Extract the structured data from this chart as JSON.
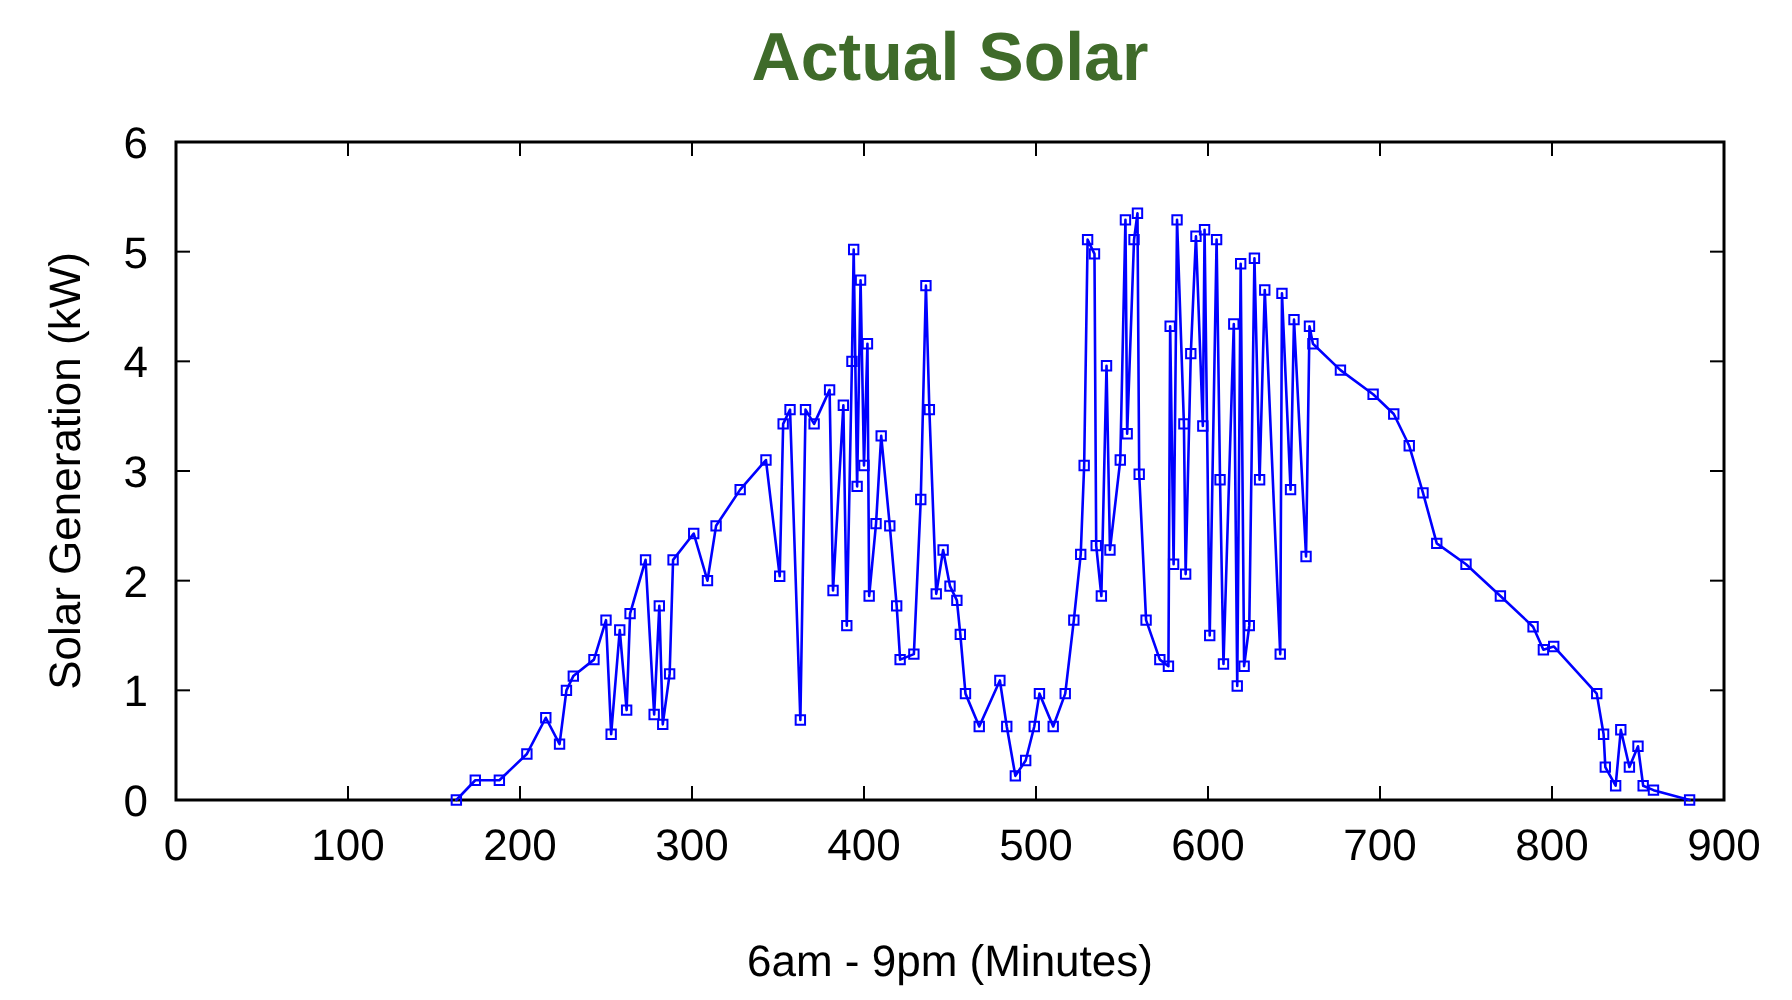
{
  "chart_data": {
    "type": "line",
    "title": "Actual Solar",
    "xlabel": "6am - 9pm (Minutes)",
    "ylabel": "Solar Generation (kW)",
    "xlim": [
      0,
      900
    ],
    "xticks": [
      0,
      100,
      200,
      300,
      400,
      500,
      600,
      700,
      800,
      900
    ],
    "ylim": [
      0,
      6
    ],
    "yticks": [
      0,
      1,
      2,
      3,
      4,
      5,
      6
    ],
    "grid": false,
    "marker": "square",
    "line_style": "solid",
    "x": [
      163,
      174,
      188,
      204,
      215,
      223,
      227,
      231,
      243,
      250,
      253,
      258,
      262,
      264,
      273,
      278,
      281,
      283,
      287,
      289,
      301,
      309,
      314,
      328,
      343,
      351,
      353,
      357,
      363,
      366,
      371,
      380,
      382,
      388,
      390,
      393,
      394,
      396,
      398,
      400,
      402,
      403,
      407,
      410,
      415,
      419,
      421,
      429,
      433,
      436,
      438,
      442,
      446,
      450,
      454,
      456,
      459,
      467,
      479,
      483,
      488,
      494,
      499,
      502,
      510,
      517,
      522,
      526,
      528,
      530,
      534,
      535,
      538,
      541,
      543,
      549,
      552,
      553,
      557,
      559,
      560,
      564,
      572,
      577,
      578,
      580,
      582,
      586,
      587,
      590,
      593,
      597,
      598,
      601,
      605,
      607,
      609,
      615,
      617,
      619,
      621,
      624,
      627,
      630,
      633,
      642,
      643,
      648,
      650,
      657,
      659,
      661,
      677,
      696,
      708,
      717,
      725,
      733,
      750,
      770,
      789,
      795,
      801,
      826,
      830,
      831,
      837,
      840,
      845,
      850,
      853,
      859,
      880
    ],
    "series": [
      {
        "color": "#0000ff",
        "values": [
          0,
          0.18,
          0.18,
          0.42,
          0.75,
          0.51,
          1.0,
          1.13,
          1.28,
          1.64,
          0.6,
          1.55,
          0.82,
          1.7,
          2.19,
          0.78,
          1.77,
          0.69,
          1.15,
          2.19,
          2.43,
          2.0,
          2.5,
          2.83,
          3.1,
          2.04,
          3.43,
          3.56,
          0.73,
          3.56,
          3.43,
          3.74,
          1.91,
          3.6,
          1.59,
          4.0,
          5.02,
          2.86,
          4.74,
          3.05,
          4.16,
          1.86,
          2.52,
          3.32,
          2.5,
          1.77,
          1.28,
          1.33,
          2.74,
          4.69,
          3.56,
          1.88,
          2.28,
          1.95,
          1.82,
          1.51,
          0.97,
          0.67,
          1.09,
          0.67,
          0.22,
          0.36,
          0.67,
          0.97,
          0.67,
          0.97,
          1.64,
          2.24,
          3.05,
          5.11,
          4.98,
          2.32,
          1.86,
          3.96,
          2.28,
          3.1,
          5.29,
          3.34,
          5.11,
          5.35,
          2.97,
          1.64,
          1.28,
          1.22,
          4.32,
          2.15,
          5.29,
          3.43,
          2.06,
          4.07,
          5.14,
          3.41,
          5.2,
          1.5,
          5.11,
          2.92,
          1.24,
          4.34,
          1.04,
          4.89,
          1.22,
          1.59,
          4.94,
          2.92,
          4.65,
          1.33,
          4.62,
          2.83,
          4.38,
          2.22,
          4.32,
          4.16,
          3.92,
          3.7,
          3.52,
          3.23,
          2.8,
          2.34,
          2.15,
          1.86,
          1.58,
          1.37,
          1.4,
          0.97,
          0.6,
          0.3,
          0.13,
          0.64,
          0.3,
          0.49,
          0.13,
          0.09,
          0
        ]
      }
    ]
  }
}
